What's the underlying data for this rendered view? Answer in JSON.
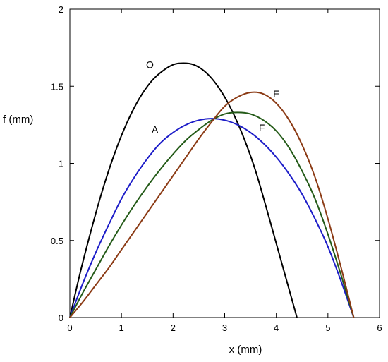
{
  "chart_data": {
    "type": "line",
    "xlabel": "x (mm)",
    "ylabel": "f (mm)",
    "xlim": [
      0,
      6
    ],
    "ylim": [
      0,
      2
    ],
    "xticks": [
      0,
      1,
      2,
      3,
      4,
      5,
      6
    ],
    "yticks": [
      0,
      0.5,
      1,
      1.5,
      2
    ],
    "xtick_labels": [
      "0",
      "1",
      "2",
      "3",
      "4",
      "5",
      "6"
    ],
    "ytick_labels": [
      "0",
      "0.5",
      "1",
      "1.5",
      "2"
    ],
    "grid": false,
    "legend": "none",
    "series": [
      {
        "name": "O",
        "color": "#000000",
        "x": [
          0,
          0.2,
          0.4,
          0.6,
          0.8,
          1.0,
          1.2,
          1.4,
          1.6,
          1.8,
          2.0,
          2.2,
          2.4,
          2.6,
          2.8,
          3.0,
          3.2,
          3.4,
          3.6,
          3.8,
          4.0,
          4.2,
          4.4
        ],
        "y": [
          0,
          0.29,
          0.55,
          0.79,
          1.0,
          1.18,
          1.33,
          1.45,
          1.54,
          1.6,
          1.64,
          1.65,
          1.64,
          1.6,
          1.53,
          1.43,
          1.3,
          1.14,
          0.95,
          0.72,
          0.48,
          0.24,
          0
        ]
      },
      {
        "name": "A",
        "color": "#1c1cc8",
        "x": [
          0,
          0.25,
          0.5,
          0.75,
          1.0,
          1.25,
          1.5,
          1.75,
          2.0,
          2.25,
          2.5,
          2.75,
          3.0,
          3.25,
          3.5,
          3.75,
          4.0,
          4.25,
          4.5,
          4.75,
          5.0,
          5.25,
          5.5
        ],
        "y": [
          0,
          0.22,
          0.42,
          0.6,
          0.77,
          0.91,
          1.03,
          1.13,
          1.2,
          1.25,
          1.28,
          1.29,
          1.28,
          1.25,
          1.2,
          1.13,
          1.04,
          0.93,
          0.8,
          0.64,
          0.46,
          0.24,
          0
        ]
      },
      {
        "name": "F",
        "color": "#235a17",
        "x": [
          0,
          0.25,
          0.5,
          0.75,
          1.0,
          1.25,
          1.5,
          1.75,
          2.0,
          2.25,
          2.5,
          2.75,
          3.0,
          3.25,
          3.5,
          3.75,
          4.0,
          4.25,
          4.5,
          4.75,
          5.0,
          5.25,
          5.5
        ],
        "y": [
          0,
          0.16,
          0.31,
          0.46,
          0.6,
          0.73,
          0.85,
          0.96,
          1.06,
          1.15,
          1.22,
          1.28,
          1.32,
          1.33,
          1.32,
          1.28,
          1.21,
          1.1,
          0.95,
          0.77,
          0.54,
          0.28,
          0
        ]
      },
      {
        "name": "E",
        "color": "#8b3a14",
        "x": [
          0,
          0.25,
          0.5,
          0.75,
          1.0,
          1.25,
          1.5,
          1.75,
          2.0,
          2.25,
          2.5,
          2.75,
          3.0,
          3.25,
          3.5,
          3.75,
          4.0,
          4.25,
          4.5,
          4.75,
          5.0,
          5.25,
          5.5
        ],
        "y": [
          0,
          0.1,
          0.21,
          0.32,
          0.44,
          0.56,
          0.68,
          0.8,
          0.92,
          1.04,
          1.16,
          1.27,
          1.37,
          1.43,
          1.46,
          1.45,
          1.39,
          1.28,
          1.12,
          0.91,
          0.64,
          0.33,
          0
        ]
      }
    ],
    "annotations": [
      {
        "text": "O",
        "x": 1.55,
        "y": 1.64,
        "series": "O"
      },
      {
        "text": "A",
        "x": 1.65,
        "y": 1.22,
        "series": "A"
      },
      {
        "text": "F",
        "x": 3.72,
        "y": 1.23,
        "series": "F"
      },
      {
        "text": "E",
        "x": 4.0,
        "y": 1.45,
        "series": "E"
      }
    ]
  }
}
